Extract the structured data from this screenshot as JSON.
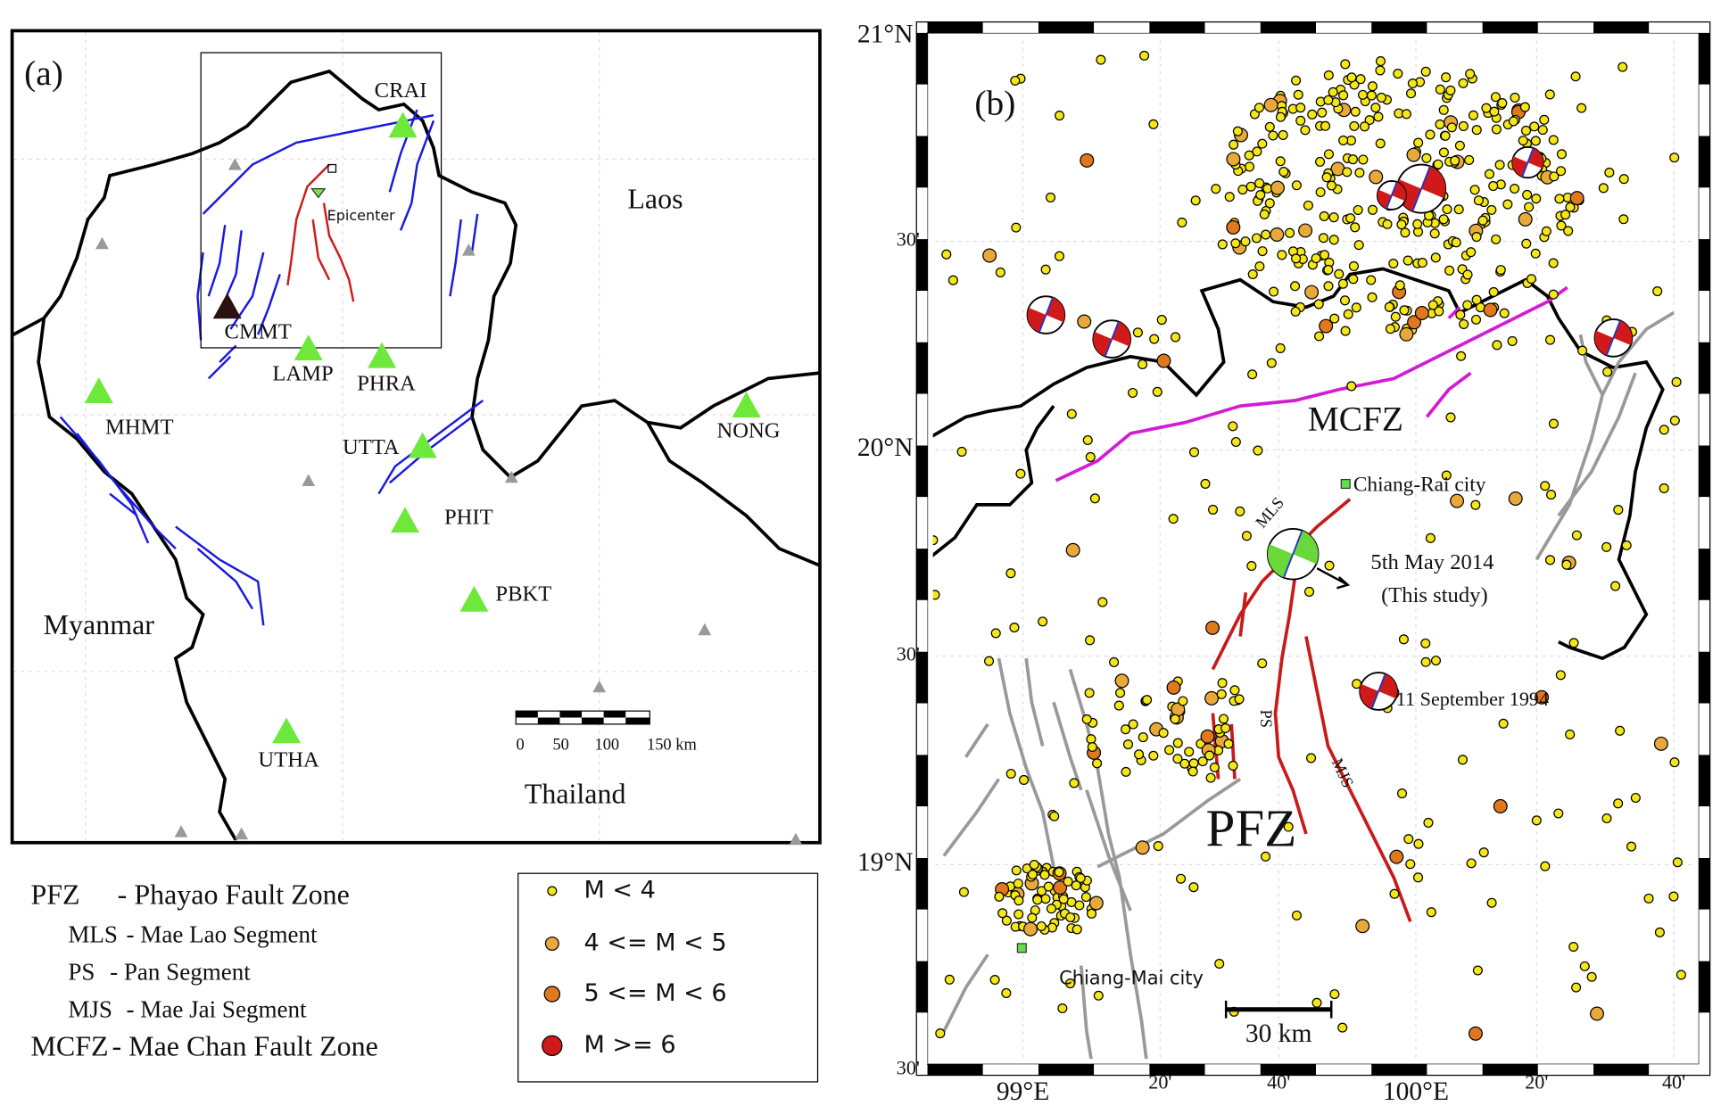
{
  "panel_a": {
    "label": "(a)",
    "countries": [
      "Laos",
      "Myanmar",
      "Thailand"
    ],
    "epicenter_label": "Epicenter",
    "stations": [
      "CRAI",
      "CMMT",
      "LAMP",
      "PHRA",
      "MHMT",
      "UTTA",
      "NONG",
      "PHIT",
      "PBKT",
      "UTHA"
    ],
    "scale_labels": [
      "0",
      "50",
      "100",
      "150 km"
    ]
  },
  "panel_b": {
    "label": "(b)",
    "lat_ticks": [
      "21°N",
      "30'",
      "20°N",
      "30'",
      "19°N",
      "30'"
    ],
    "lon_ticks": [
      "99°E",
      "20'",
      "40'",
      "100°E",
      "20'",
      "40'"
    ],
    "fault_zones": [
      "MCFZ",
      "PFZ"
    ],
    "segments": [
      "MLS",
      "PS",
      "MJS"
    ],
    "places": [
      "Chiang-Rai city",
      "Chiang-Mai city"
    ],
    "event": [
      "5th May 2014",
      "(This study)"
    ],
    "event_1994": "11 September 1994",
    "scale": "30 km"
  },
  "fault_legend": [
    {
      "abbr": "PFZ",
      "text": "- Phayao Fault Zone"
    },
    {
      "abbr": "MLS",
      "text": "- Mae Lao Segment"
    },
    {
      "abbr": "PS",
      "text": "- Pan Segment"
    },
    {
      "abbr": "MJS",
      "text": "- Mae Jai Segment"
    },
    {
      "abbr": "MCFZ",
      "text": "- Mae Chan Fault Zone"
    }
  ],
  "magnitude_legend": [
    "M < 4",
    "4 <= M < 5",
    "5 <= M < 6",
    "M >= 6"
  ]
}
